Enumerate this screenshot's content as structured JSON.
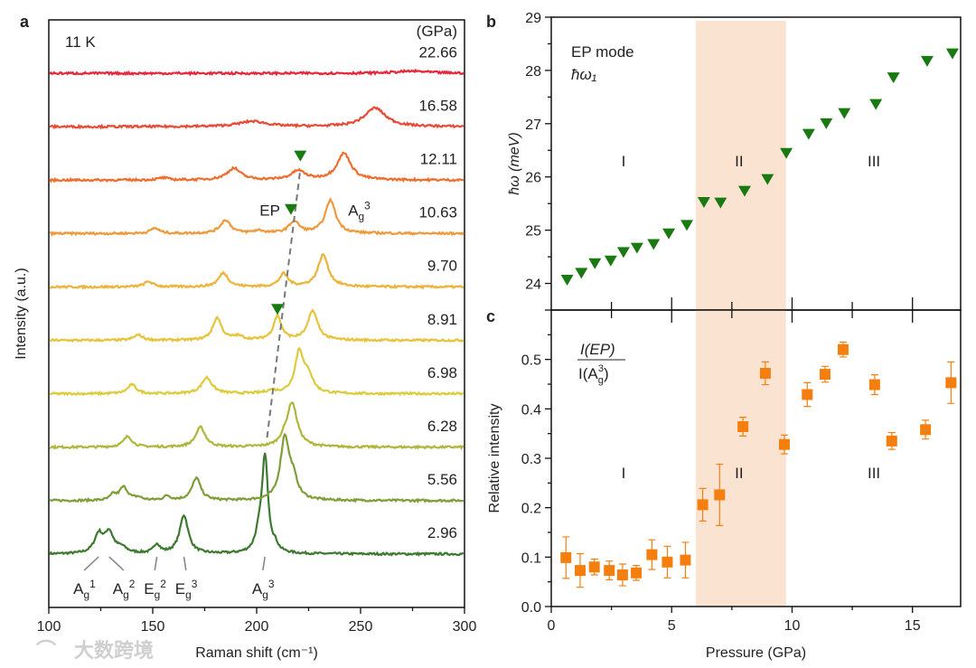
{
  "chart_data": [
    {
      "panel": "a",
      "type": "line",
      "annotation_temperature": "11 K",
      "unit_label": "(GPa)",
      "xlabel": "Raman shift (cm⁻¹)",
      "ylabel": "Intensity (a.u.)",
      "xlim": [
        100,
        300
      ],
      "ylim": [
        -1,
        10
      ],
      "xticks": [
        "100",
        "150",
        "200",
        "250",
        "300"
      ],
      "series": [
        {
          "name": "2.96",
          "offset": 0,
          "color": "#3d7a30",
          "peaks": [
            [
              124,
              0.35,
              2.5
            ],
            [
              129,
              0.38,
              2.5
            ],
            [
              135,
              0.1,
              3
            ],
            [
              152,
              0.17,
              1.8
            ],
            [
              165,
              0.72,
              2.5
            ],
            [
              201,
              0.25,
              2
            ],
            [
              204,
              1.8,
              1.8
            ],
            [
              209,
              0.1,
              1.5
            ]
          ]
        },
        {
          "name": "5.56",
          "offset": 1,
          "color": "#7f9e3a",
          "peaks": [
            [
              131,
              0.1,
              1.5
            ],
            [
              136,
              0.25,
              2.5
            ],
            [
              143,
              0.05,
              2
            ],
            [
              157,
              0.08,
              2
            ],
            [
              171,
              0.42,
              2.5
            ],
            [
              213.5,
              1.15,
              2.5
            ],
            [
              217.5,
              0.35,
              2.5
            ]
          ]
        },
        {
          "name": "6.28",
          "offset": 2,
          "color": "#b0b63c",
          "peaks": [
            [
              138,
              0.2,
              2.5
            ],
            [
              173,
              0.37,
              2.8
            ],
            [
              213,
              0.08,
              2
            ],
            [
              217,
              0.83,
              3
            ]
          ]
        },
        {
          "name": "6.98",
          "offset": 3,
          "color": "#dccb3c",
          "peaks": [
            [
              140,
              0.17,
              2.5
            ],
            [
              176,
              0.3,
              3
            ],
            [
              207,
              0.05,
              3
            ],
            [
              220.5,
              0.78,
              2.5
            ],
            [
              225,
              0.3,
              2.5
            ]
          ]
        },
        {
          "name": "8.91",
          "offset": 4,
          "color": "#e6c33a",
          "peaks": [
            [
              143,
              0.1,
              2.5
            ],
            [
              181,
              0.42,
              2.5
            ],
            [
              191,
              0.07,
              3
            ],
            [
              210,
              0.45,
              2.3
            ],
            [
              227,
              0.55,
              2.8
            ]
          ]
        },
        {
          "name": "9.70",
          "offset": 5,
          "color": "#ebb33a",
          "peaks": [
            [
              148,
              0.1,
              2.5
            ],
            [
              184,
              0.26,
              2.8
            ],
            [
              213,
              0.24,
              2.5
            ],
            [
              232,
              0.6,
              3
            ]
          ]
        },
        {
          "name": "10.63",
          "offset": 6,
          "color": "#ee9a3a",
          "peaks": [
            [
              151,
              0.1,
              2.5
            ],
            [
              185,
              0.25,
              3
            ],
            [
              201,
              0.05,
              3
            ],
            [
              218,
              0.22,
              3
            ],
            [
              235.5,
              0.62,
              3
            ]
          ]
        },
        {
          "name": "12.11",
          "offset": 7,
          "color": "#ec6f2f",
          "peaks": [
            [
              155,
              0.04,
              3
            ],
            [
              189,
              0.22,
              4
            ],
            [
              220,
              0.17,
              4
            ],
            [
              242,
              0.5,
              4
            ]
          ]
        },
        {
          "name": "16.58",
          "offset": 8,
          "color": "#e84a36",
          "peaks": [
            [
              198,
              0.1,
              8
            ],
            [
              257,
              0.35,
              6
            ]
          ]
        },
        {
          "name": "22.66",
          "offset": 9,
          "color": "#e8263a",
          "peaks": [
            [
              275,
              0.04,
              10
            ]
          ]
        }
      ],
      "ep_markers": [
        {
          "pressure": "12.11",
          "shift": 221,
          "offset": 7,
          "level": 0.45
        },
        {
          "pressure": "10.63",
          "shift": 216.5,
          "offset": 6,
          "level": 0.45
        },
        {
          "pressure": "8.91",
          "shift": 210,
          "offset": 4,
          "level": 0.58
        }
      ],
      "ep_guide_line": {
        "from": [
          205,
          2.18
        ],
        "to": [
          221,
          7.2
        ]
      },
      "ep_label": "EP",
      "ag3_label": {
        "base": "A",
        "sub": "g",
        "sup": "3"
      },
      "mode_labels": [
        {
          "base": "A",
          "sub": "g",
          "sup": "1",
          "shift": 124,
          "text_shift": 117
        },
        {
          "base": "A",
          "sub": "g",
          "sup": "2",
          "shift": 129,
          "text_shift": 136
        },
        {
          "base": "E",
          "sub": "g",
          "sup": "2",
          "shift": 152,
          "text_shift": 151
        },
        {
          "base": "E",
          "sub": "g",
          "sup": "3",
          "shift": 165,
          "text_shift": 166
        },
        {
          "base": "A",
          "sub": "g",
          "sup": "3",
          "shift": 204,
          "text_shift": 203
        }
      ],
      "marker_color": "#1a7a12"
    },
    {
      "panel": "b",
      "type": "scatter",
      "title": "EP mode",
      "subtitle": "ħω₁",
      "ylabel": "ħω (meV)",
      "xlim": [
        0,
        17
      ],
      "ylim": [
        23.5,
        29
      ],
      "yticks": [
        "24",
        "25",
        "26",
        "27",
        "28",
        "29"
      ],
      "shaded_region": [
        6.0,
        9.75
      ],
      "shade_color": "#fbe3d2",
      "marker": "triangle-down",
      "color": "#1a7a12",
      "region_labels": [
        {
          "text": "I",
          "x": 3.0
        },
        {
          "text": "II",
          "x": 7.8
        },
        {
          "text": "III",
          "x": 13.4
        }
      ],
      "region_label_y": 26.2,
      "x": [
        0.66,
        1.25,
        1.81,
        2.47,
        3.0,
        3.56,
        4.25,
        4.88,
        5.63,
        6.34,
        7.03,
        8.03,
        8.98,
        9.76,
        10.69,
        11.42,
        12.17,
        13.48,
        14.21,
        15.61,
        16.66
      ],
      "y": [
        24.06,
        24.19,
        24.37,
        24.42,
        24.58,
        24.66,
        24.73,
        24.93,
        25.09,
        25.52,
        25.51,
        25.73,
        25.95,
        26.44,
        26.8,
        27.0,
        27.19,
        27.36,
        27.86,
        28.17,
        28.31
      ]
    },
    {
      "panel": "c",
      "type": "scatter",
      "title_numerator": "I(EP)",
      "title_denominator": {
        "pre": "I(A",
        "sub": "g",
        "sup": "3",
        "post": ")"
      },
      "xlabel": "Pressure (GPa)",
      "ylabel": "Relative intensity",
      "xlim": [
        0,
        17
      ],
      "ylim": [
        0,
        0.6
      ],
      "xticks": [
        "0",
        "5",
        "10",
        "15"
      ],
      "yticks": [
        "0.0",
        "0.1",
        "0.2",
        "0.3",
        "0.4",
        "0.5"
      ],
      "shaded_region": [
        6.0,
        9.75
      ],
      "marker": "square",
      "color": "#f47f0f",
      "region_labels": [
        {
          "text": "I",
          "x": 3.0
        },
        {
          "text": "II",
          "x": 7.8
        },
        {
          "text": "III",
          "x": 13.4
        }
      ],
      "region_label_y": 0.26,
      "x": [
        0.61,
        1.2,
        1.79,
        2.41,
        2.96,
        3.53,
        4.18,
        4.82,
        5.57,
        6.29,
        6.99,
        7.96,
        8.89,
        9.68,
        10.63,
        11.37,
        12.12,
        13.43,
        14.14,
        15.54,
        16.6
      ],
      "y": [
        0.099,
        0.073,
        0.08,
        0.073,
        0.064,
        0.068,
        0.105,
        0.09,
        0.094,
        0.206,
        0.226,
        0.364,
        0.472,
        0.328,
        0.429,
        0.47,
        0.52,
        0.449,
        0.335,
        0.358,
        0.453
      ],
      "yerr": [
        0.042,
        0.034,
        0.016,
        0.019,
        0.022,
        0.015,
        0.03,
        0.032,
        0.036,
        0.033,
        0.062,
        0.019,
        0.023,
        0.019,
        0.024,
        0.016,
        0.015,
        0.02,
        0.017,
        0.019,
        0.042
      ]
    }
  ],
  "panel_labels": {
    "a": "a",
    "b": "b",
    "c": "c"
  },
  "watermark": "大数跨境"
}
